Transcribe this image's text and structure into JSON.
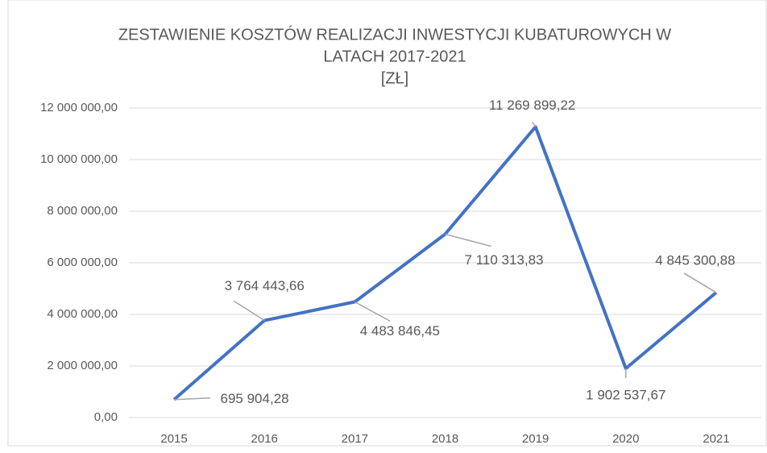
{
  "chart_data": {
    "type": "line",
    "title": [
      "ZESTAWIENIE KOSZTÓW REALIZACJI INWESTYCJI KUBATUROWYCH W",
      "LATACH 2017-2021",
      "[ZŁ]"
    ],
    "categories": [
      "2015",
      "2016",
      "2017",
      "2018",
      "2019",
      "2020",
      "2021"
    ],
    "values": [
      695904.28,
      3764443.66,
      4483846.45,
      7110313.83,
      11269899.22,
      1902537.67,
      4845300.88
    ],
    "value_labels": [
      "695 904,28",
      "3 764 443,66",
      "4 483 846,45",
      "7 110 313,83",
      "11 269 899,22",
      "1 902 537,67",
      "4 845 300,88"
    ],
    "color": "#4472c4",
    "ylim": [
      0,
      12000000
    ],
    "yticks": [
      {
        "value": 0,
        "label": "0,00"
      },
      {
        "value": 2000000,
        "label": "2 000 000,00"
      },
      {
        "value": 4000000,
        "label": "4 000 000,00"
      },
      {
        "value": 6000000,
        "label": "6 000 000,00"
      },
      {
        "value": 8000000,
        "label": "8 000 000,00"
      },
      {
        "value": 10000000,
        "label": "10 000 000,00"
      },
      {
        "value": 12000000,
        "label": "12 000 000,00"
      }
    ],
    "grid": true
  }
}
